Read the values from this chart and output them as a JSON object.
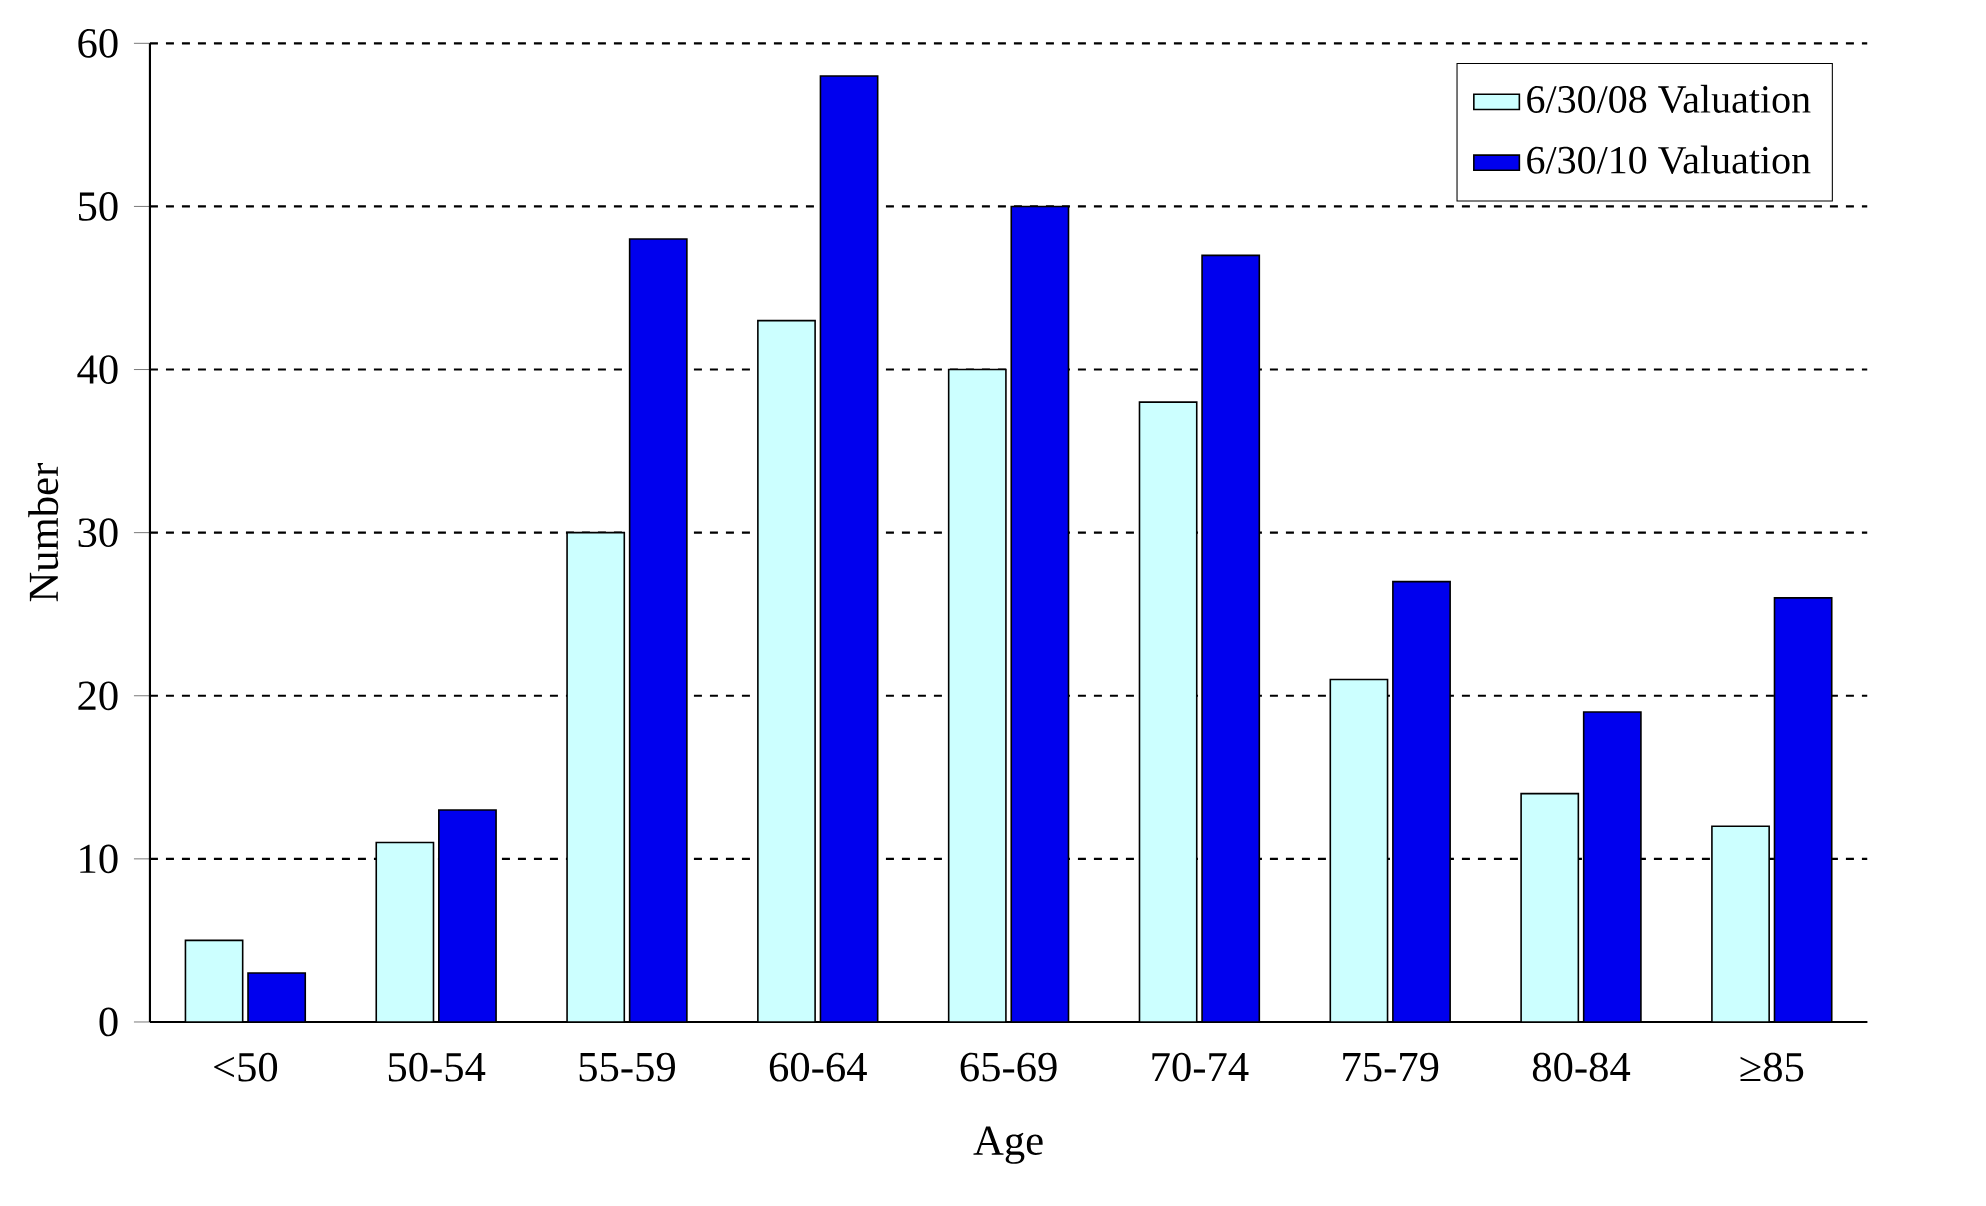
{
  "chart_data": {
    "type": "bar",
    "xlabel": "Age",
    "ylabel": "Number",
    "categories": [
      "<50",
      "50-54",
      "55-59",
      "60-64",
      "65-69",
      "70-74",
      "75-79",
      "80-84",
      "≥85"
    ],
    "series": [
      {
        "name": "6/30/08 Valuation",
        "color": "#ccffff",
        "values": [
          5,
          11,
          30,
          43,
          40,
          38,
          21,
          14,
          12
        ]
      },
      {
        "name": "6/30/10 Valuation",
        "color": "#0000ee",
        "values": [
          3,
          13,
          48,
          58,
          50,
          47,
          27,
          19,
          26
        ]
      }
    ],
    "ylim": [
      0,
      60
    ],
    "yticks": [
      0,
      10,
      20,
      30,
      40,
      50,
      60
    ],
    "grid": "y",
    "legend": "top right"
  }
}
